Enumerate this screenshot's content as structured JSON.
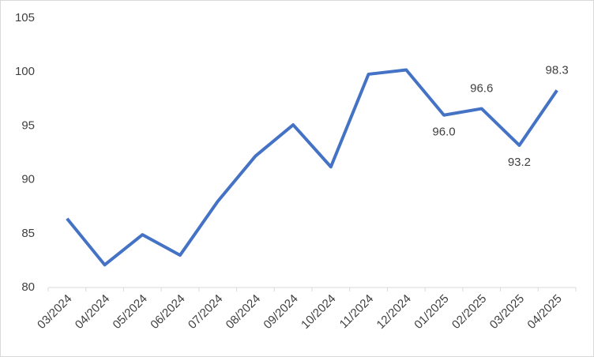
{
  "chart_data": {
    "type": "line",
    "categories": [
      "03/2024",
      "04/2024",
      "05/2024",
      "06/2024",
      "07/2024",
      "08/2024",
      "09/2024",
      "10/2024",
      "11/2024",
      "12/2024",
      "01/2025",
      "02/2025",
      "03/2025",
      "04/2025"
    ],
    "series": [
      {
        "color": "#4472c4",
        "values": [
          86.4,
          82.1,
          84.9,
          83.0,
          88.0,
          92.2,
          95.1,
          91.2,
          99.8,
          100.2,
          96.0,
          96.6,
          93.2,
          98.3
        ],
        "value_labels": [
          null,
          null,
          null,
          null,
          null,
          null,
          null,
          null,
          null,
          null,
          "96.0",
          "96.6",
          "93.2",
          "98.3"
        ]
      }
    ],
    "ylim": [
      80,
      105
    ],
    "yticks": [
      80,
      85,
      90,
      95,
      100,
      105
    ],
    "grid": false
  }
}
